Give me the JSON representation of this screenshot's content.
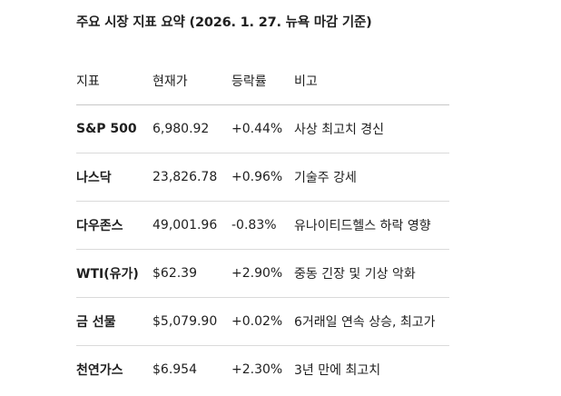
{
  "title": "주요 시장 지표 요약 (2026. 1. 27. 뉴욕 마감 기준)",
  "table": {
    "headers": [
      "지표",
      "현재가",
      "등락률",
      "비고"
    ],
    "rows": [
      {
        "indicator": "S&P 500",
        "price": "6,980.92",
        "change": "+0.44%",
        "note": "사상 최고치 경신"
      },
      {
        "indicator": "나스닥",
        "price": "23,826.78",
        "change": "+0.96%",
        "note": "기술주 강세"
      },
      {
        "indicator": "다우존스",
        "price": "49,001.96",
        "change": "-0.83%",
        "note": "유나이티드헬스 하락 영향"
      },
      {
        "indicator": "WTI(유가)",
        "price": "$62.39",
        "change": "+2.90%",
        "note": "중동 긴장 및 기상 악화"
      },
      {
        "indicator": "금 선물",
        "price": "$5,079.90",
        "change": "+0.02%",
        "note": "6거래일 연속 상승, 최고가"
      },
      {
        "indicator": "천연가스",
        "price": "$6.954",
        "change": "+2.30%",
        "note": "3년 만에 최고치"
      }
    ]
  }
}
